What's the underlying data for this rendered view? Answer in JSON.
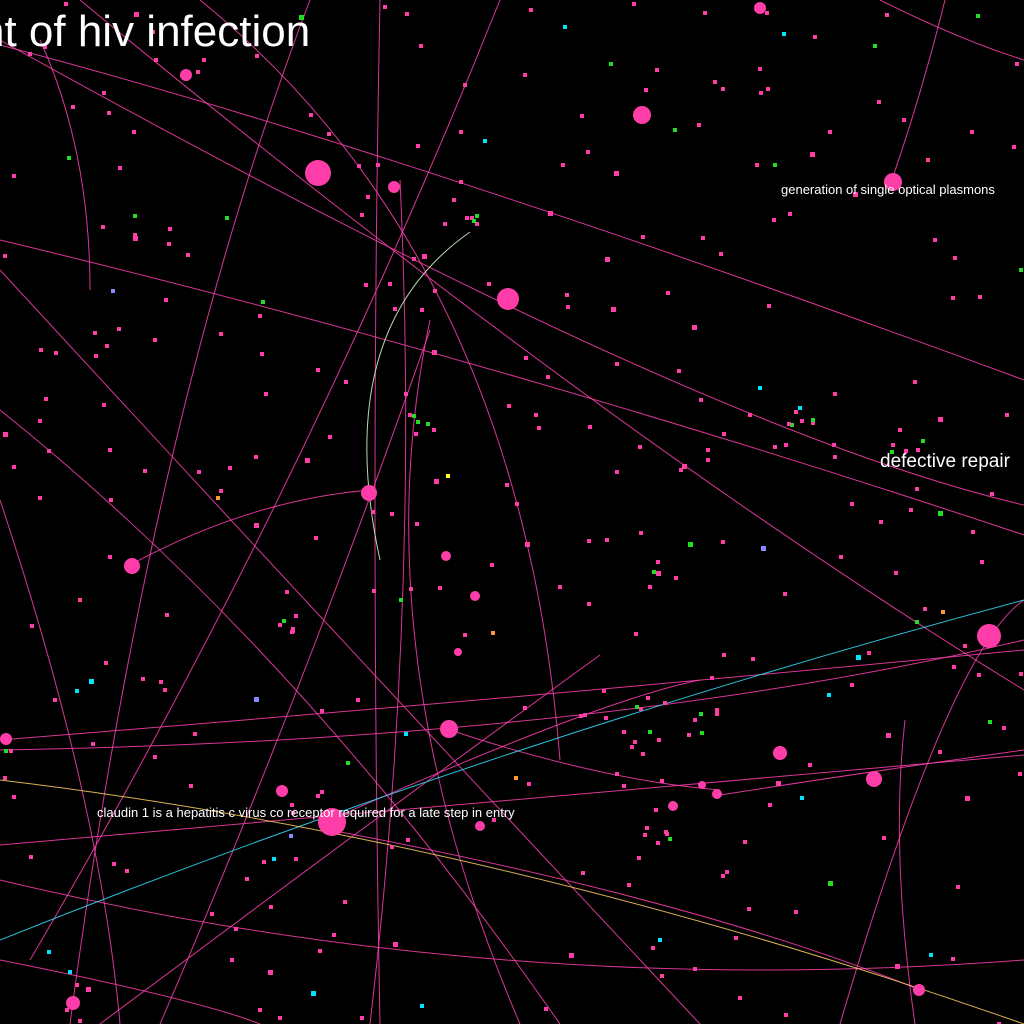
{
  "colors": {
    "background": "#000000",
    "edge": "#ff40b0",
    "node": "#ff3da8",
    "edge_cyan": "#33e0ff",
    "edge_yellow": "#ffd060",
    "edge_pale": "#d8ffd0",
    "label": "#ffffff",
    "small_node_palette": [
      "#ff3da8",
      "#22dd22",
      "#00e5ff",
      "#ff9933",
      "#ffff22",
      "#8888ff",
      "#c0c0ff"
    ]
  },
  "labels": [
    "nt of hiv infection",
    "generation of single optical plasmons",
    "defective repair",
    "claudin 1 is a hepatitis c virus co receptor required for a late step in entry"
  ]
}
